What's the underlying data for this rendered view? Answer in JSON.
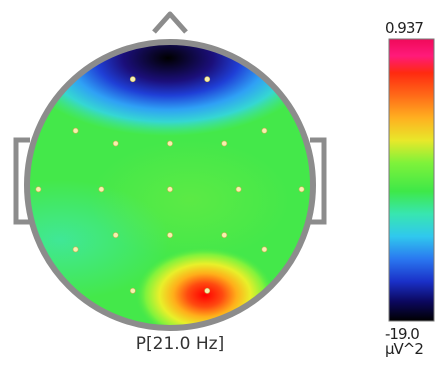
{
  "chart_data": {
    "type": "heatmap",
    "title": "P[21.0 Hz]",
    "colorbar": {
      "max_label": "0.937",
      "min_label": "-19.0",
      "unit": "μV^2"
    },
    "electrodes": [
      [
        -0.26,
        -0.74
      ],
      [
        0.26,
        -0.74
      ],
      [
        -0.66,
        -0.38
      ],
      [
        -0.38,
        -0.29
      ],
      [
        0.0,
        -0.29
      ],
      [
        0.38,
        -0.29
      ],
      [
        0.66,
        -0.38
      ],
      [
        -0.92,
        0.03
      ],
      [
        -0.48,
        0.03
      ],
      [
        0.0,
        0.03
      ],
      [
        0.48,
        0.03
      ],
      [
        0.92,
        0.03
      ],
      [
        -0.66,
        0.45
      ],
      [
        -0.38,
        0.35
      ],
      [
        0.0,
        0.35
      ],
      [
        0.38,
        0.35
      ],
      [
        0.66,
        0.45
      ],
      [
        -0.26,
        0.74
      ],
      [
        0.26,
        0.74
      ]
    ],
    "field_notes": "frontal minimum (black/blue) near top, posterior-right maximum (red) at bottom"
  }
}
